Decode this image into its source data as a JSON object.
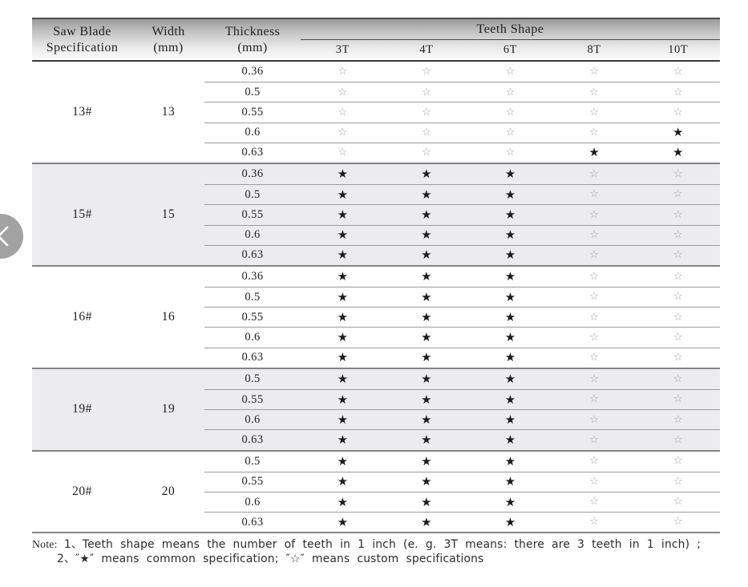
{
  "table": {
    "header": {
      "spec_line1": "Saw Blade",
      "spec_line2": "Specification",
      "width_line1": "Width",
      "width_line2": "(mm)",
      "thickness_line1": "Thickness",
      "thickness_line2": "(mm)",
      "teeth_shape_label": "Teeth Shape",
      "teeth_columns": [
        "3T",
        "4T",
        "6T",
        "8T",
        "10T"
      ]
    },
    "groups": [
      {
        "spec": "13#",
        "width": "13",
        "shaded": false,
        "rows": [
          {
            "thickness": "0.36",
            "cells": [
              "☆",
              "☆",
              "☆",
              "☆",
              "☆"
            ]
          },
          {
            "thickness": "0.5",
            "cells": [
              "☆",
              "☆",
              "☆",
              "☆",
              "☆"
            ]
          },
          {
            "thickness": "0.55",
            "cells": [
              "☆",
              "☆",
              "☆",
              "☆",
              "☆"
            ]
          },
          {
            "thickness": "0.6",
            "cells": [
              "☆",
              "☆",
              "☆",
              "☆",
              "★"
            ]
          },
          {
            "thickness": "0.63",
            "cells": [
              "☆",
              "☆",
              "☆",
              "★",
              "★"
            ]
          }
        ]
      },
      {
        "spec": "15#",
        "width": "15",
        "shaded": true,
        "rows": [
          {
            "thickness": "0.36",
            "cells": [
              "★",
              "★",
              "★",
              "☆",
              "☆"
            ]
          },
          {
            "thickness": "0.5",
            "cells": [
              "★",
              "★",
              "★",
              "☆",
              "☆"
            ]
          },
          {
            "thickness": "0.55",
            "cells": [
              "★",
              "★",
              "★",
              "☆",
              "☆"
            ]
          },
          {
            "thickness": "0.6",
            "cells": [
              "★",
              "★",
              "★",
              "☆",
              "☆"
            ]
          },
          {
            "thickness": "0.63",
            "cells": [
              "★",
              "★",
              "★",
              "☆",
              "☆"
            ]
          }
        ]
      },
      {
        "spec": "16#",
        "width": "16",
        "shaded": false,
        "rows": [
          {
            "thickness": "0.36",
            "cells": [
              "★",
              "★",
              "★",
              "☆",
              "☆"
            ]
          },
          {
            "thickness": "0.5",
            "cells": [
              "★",
              "★",
              "★",
              "☆",
              "☆"
            ]
          },
          {
            "thickness": "0.55",
            "cells": [
              "★",
              "★",
              "★",
              "☆",
              "☆"
            ]
          },
          {
            "thickness": "0.6",
            "cells": [
              "★",
              "★",
              "★",
              "☆",
              "☆"
            ]
          },
          {
            "thickness": "0.63",
            "cells": [
              "★",
              "★",
              "★",
              "☆",
              "☆"
            ]
          }
        ]
      },
      {
        "spec": "19#",
        "width": "19",
        "shaded": true,
        "rows": [
          {
            "thickness": "0.5",
            "cells": [
              "★",
              "★",
              "★",
              "☆",
              "☆"
            ]
          },
          {
            "thickness": "0.55",
            "cells": [
              "★",
              "★",
              "★",
              "☆",
              "☆"
            ]
          },
          {
            "thickness": "0.6",
            "cells": [
              "★",
              "★",
              "★",
              "☆",
              "☆"
            ]
          },
          {
            "thickness": "0.63",
            "cells": [
              "★",
              "★",
              "★",
              "☆",
              "☆"
            ]
          }
        ]
      },
      {
        "spec": "20#",
        "width": "20",
        "shaded": false,
        "rows": [
          {
            "thickness": "0.5",
            "cells": [
              "★",
              "★",
              "★",
              "☆",
              "☆"
            ]
          },
          {
            "thickness": "0.55",
            "cells": [
              "★",
              "★",
              "★",
              "☆",
              "☆"
            ]
          },
          {
            "thickness": "0.6",
            "cells": [
              "★",
              "★",
              "★",
              "☆",
              "☆"
            ]
          },
          {
            "thickness": "0.63",
            "cells": [
              "★",
              "★",
              "★",
              "☆",
              "☆"
            ]
          }
        ]
      }
    ]
  },
  "legend": {
    "common_symbol": "★",
    "custom_symbol": "☆"
  },
  "note": {
    "label": "Note:",
    "items": [
      "1、Teeth shape means the number of teeth in 1 inch (e. g.  3T  means: there are 3 teeth in 1 inch) ;",
      "2、″★″ means common specification;  ″☆″ means custom specifications"
    ]
  },
  "nav": {
    "prev_icon": "chevron-left"
  },
  "colors": {
    "header_gradient_top": "#9a9a9a",
    "header_gradient_bottom": "#fbfbfb",
    "shaded_group_bg": "#ececee",
    "star_filled": "#1b1b1b",
    "star_outline": "#a8a8a8",
    "group_border": "#848484",
    "row_line": "#9c9c9c"
  }
}
